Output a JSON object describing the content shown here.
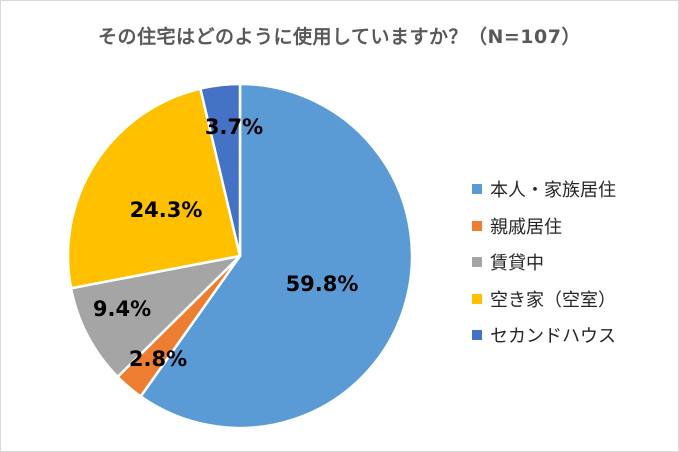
{
  "chart_data": {
    "type": "pie",
    "title": "その住宅はどのように使用していますか？（N=107）",
    "categories": [
      "本人・家族居住",
      "親戚居住",
      "賃貸中",
      "空き家（空室）",
      "セカンドハウス"
    ],
    "values": [
      59.8,
      2.8,
      9.4,
      24.3,
      3.7
    ],
    "value_labels": [
      "59.8%",
      "2.8%",
      "9.4%",
      "24.3%",
      "3.7%"
    ],
    "colors": [
      "#5b9bd5",
      "#ed7d31",
      "#a5a5a5",
      "#ffc000",
      "#4472c4"
    ],
    "start_angle": "12 o'clock, clockwise",
    "legend_position": "right"
  },
  "legend": {
    "items": [
      {
        "label": "本人・家族居住",
        "color": "#5b9bd5"
      },
      {
        "label": "親戚居住",
        "color": "#ed7d31"
      },
      {
        "label": "賃貸中",
        "color": "#a5a5a5"
      },
      {
        "label": "空き家（空室）",
        "color": "#ffc000"
      },
      {
        "label": "セカンドハウス",
        "color": "#4472c4"
      }
    ]
  }
}
